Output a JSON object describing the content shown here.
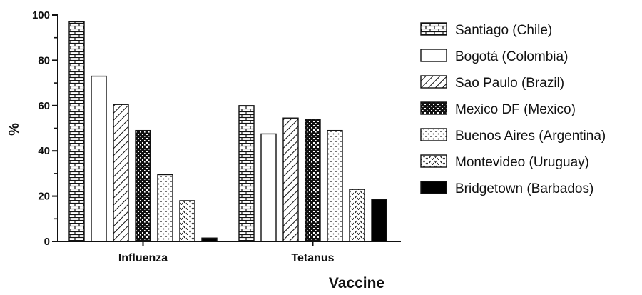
{
  "chart_data": {
    "type": "bar",
    "title": "",
    "xlabel": "Vaccine",
    "ylabel": "%",
    "ylim": [
      0,
      100
    ],
    "yticks": [
      "0",
      "20",
      "40",
      "60",
      "80",
      "100"
    ],
    "grid": false,
    "legend_position": "right",
    "categories": [
      "Influenza",
      "Tetanus"
    ],
    "series": [
      {
        "name": "Santiago (Chile)",
        "pattern": "brick",
        "values": [
          97,
          60
        ]
      },
      {
        "name": "Bogotá (Colombia)",
        "pattern": "blank",
        "values": [
          73,
          47.5
        ]
      },
      {
        "name": "Sao Paulo (Brazil)",
        "pattern": "diagonal",
        "values": [
          60.5,
          54.5
        ]
      },
      {
        "name": "Mexico DF (Mexico)",
        "pattern": "crosshatch",
        "values": [
          49,
          54
        ]
      },
      {
        "name": "Buenos Aires (Argentina)",
        "pattern": "dots",
        "values": [
          29.5,
          49
        ]
      },
      {
        "name": "Montevideo (Uruguay)",
        "pattern": "v-marks",
        "values": [
          18,
          23
        ]
      },
      {
        "name": "Bridgetown (Barbados)",
        "pattern": "solid",
        "values": [
          1.5,
          18.5
        ]
      }
    ],
    "colors": {
      "stroke": "#111111",
      "fill": "#ffffff",
      "solid": "#000000"
    }
  }
}
